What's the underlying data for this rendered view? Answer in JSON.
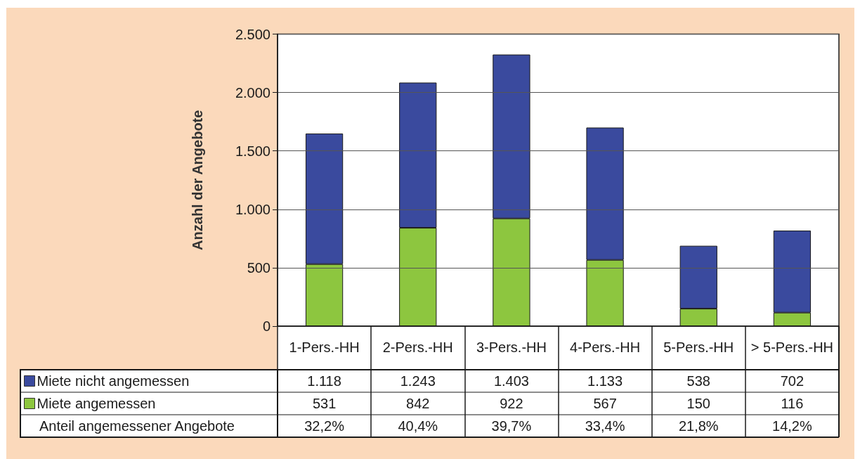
{
  "chart_data": {
    "type": "bar",
    "ylabel": "Anzahl der Angebote",
    "categories": [
      "1-Pers.-HH",
      "2-Pers.-HH",
      "3-Pers.-HH",
      "4-Pers.-HH",
      "5-Pers.-HH",
      "> 5-Pers.-HH"
    ],
    "series": [
      {
        "name": "Miete angemessen",
        "color": "#8dc63f",
        "values": [
          531,
          842,
          922,
          567,
          150,
          116
        ],
        "value_labels": [
          "531",
          "842",
          "922",
          "567",
          "150",
          "116"
        ]
      },
      {
        "name": "Miete nicht angemessen",
        "color": "#3a4a9e",
        "values": [
          1118,
          1243,
          1403,
          1133,
          538,
          702
        ],
        "value_labels": [
          "1.118",
          "1.243",
          "1.403",
          "1.133",
          "538",
          "702"
        ]
      }
    ],
    "stacked": true,
    "ylim": [
      0,
      2500
    ],
    "yticks": [
      0,
      500,
      {
        "value": 1000,
        "label": "1.000"
      },
      {
        "value": 1500,
        "label": "1.500"
      },
      {
        "value": 2000,
        "label": "2.000"
      },
      {
        "value": 2500,
        "label": "2.500"
      }
    ],
    "grid": "y",
    "legend": "bottom left",
    "annotations": [
      "Anteil angemessener Angebote",
      "32,2%",
      "40,4%",
      "39,7%",
      "33,4%",
      "21,8%",
      "14,2%"
    ]
  }
}
